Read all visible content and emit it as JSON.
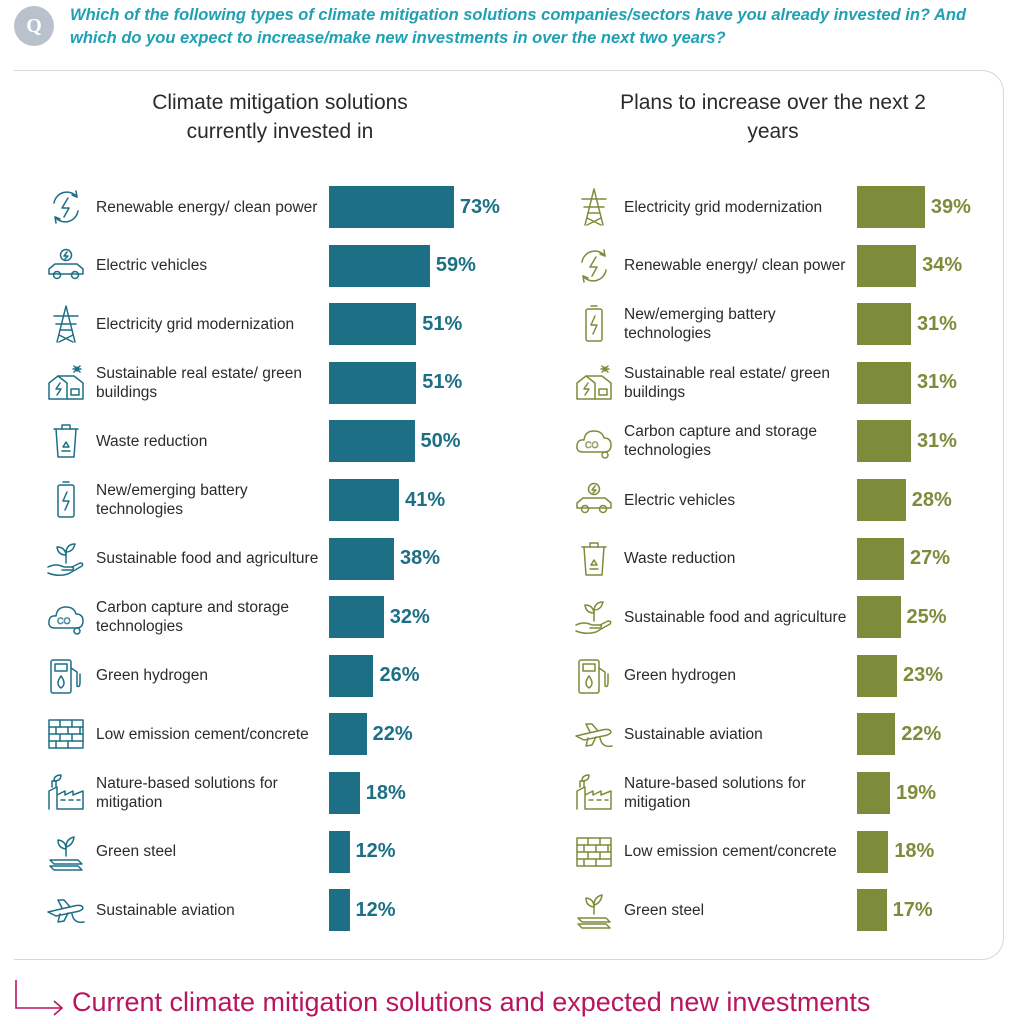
{
  "question": {
    "badge": "Q",
    "text": "Which of the following types of climate mitigation solutions companies/sectors have you already invested in? And which do you expect to increase/make new investments in over the next two years?"
  },
  "footer": {
    "title": "Current climate mitigation solutions and expected new investments"
  },
  "colors": {
    "current": "#1c6f85",
    "plans": "#7d8c3a",
    "question": "#1fa1b3",
    "footer": "#b8155f"
  },
  "chart_data": [
    {
      "type": "bar",
      "orientation": "horizontal",
      "title": "Climate mitigation solutions currently invested in",
      "unit": "%",
      "categories": [
        "Renewable energy/ clean power",
        "Electric vehicles",
        "Electricity grid modernization",
        "Sustainable real estate/ green buildings",
        "Waste reduction",
        "New/emerging battery technologies",
        "Sustainable food and agriculture",
        "Carbon capture and storage technologies",
        "Green hydrogen",
        "Low emission cement/concrete",
        "Nature-based solutions for mitigation",
        "Green steel",
        "Sustainable aviation"
      ],
      "icons": [
        "renewable-energy-icon",
        "electric-vehicle-icon",
        "transmission-tower-icon",
        "green-building-icon",
        "recycle-bin-icon",
        "battery-icon",
        "plant-hand-icon",
        "co2-cloud-icon",
        "hydrogen-pump-icon",
        "brick-wall-icon",
        "factory-leaf-icon",
        "steel-beam-leaf-icon",
        "leaf-plane-icon"
      ],
      "values": [
        73,
        59,
        51,
        51,
        50,
        41,
        38,
        32,
        26,
        22,
        18,
        12,
        12
      ],
      "labels": [
        "73%",
        "59%",
        "51%",
        "51%",
        "50%",
        "41%",
        "38%",
        "32%",
        "26%",
        "22%",
        "18%",
        "12%",
        "12%"
      ]
    },
    {
      "type": "bar",
      "orientation": "horizontal",
      "title": "Plans to increase over the next 2 years",
      "unit": "%",
      "categories": [
        "Electricity grid modernization",
        "Renewable energy/ clean power",
        "New/emerging battery technologies",
        "Sustainable real estate/ green buildings",
        "Carbon capture and storage technologies",
        "Electric vehicles",
        "Waste reduction",
        "Sustainable food and agriculture",
        "Green hydrogen",
        "Sustainable aviation",
        "Nature-based solutions for mitigation",
        "Low emission cement/concrete",
        "Green steel"
      ],
      "icons": [
        "transmission-tower-icon",
        "renewable-energy-icon",
        "battery-icon",
        "green-building-icon",
        "co2-cloud-icon",
        "electric-vehicle-icon",
        "recycle-bin-icon",
        "plant-hand-icon",
        "hydrogen-pump-icon",
        "leaf-plane-icon",
        "factory-leaf-icon",
        "brick-wall-icon",
        "steel-beam-leaf-icon"
      ],
      "values": [
        39,
        34,
        31,
        31,
        31,
        28,
        27,
        25,
        23,
        22,
        19,
        18,
        17
      ],
      "labels": [
        "39%",
        "34%",
        "31%",
        "31%",
        "31%",
        "28%",
        "27%",
        "25%",
        "23%",
        "22%",
        "19%",
        "18%",
        "17%"
      ]
    }
  ]
}
